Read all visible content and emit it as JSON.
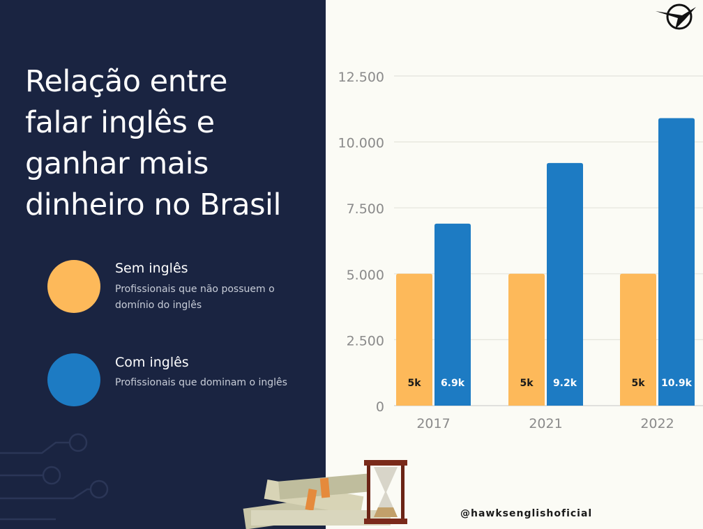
{
  "title": "Relação entre\nfalar inglês e\nganhar mais\ndinheiro no Brasil",
  "legend": [
    {
      "name": "Sem inglês",
      "desc": "Profissionais que não possuem o\ndomínio do inglês",
      "color": "#fdb95a"
    },
    {
      "name": "Com inglês",
      "desc": "Profissionais que dominam o inglês",
      "color": "#1d7bc3"
    }
  ],
  "handle": "@hawksenglishoficial",
  "chart_data": {
    "type": "bar",
    "categories": [
      "2017",
      "2021",
      "2022"
    ],
    "series": [
      {
        "values": [
          5000,
          5000,
          5000
        ],
        "labels": [
          "5k",
          "5k",
          "5k"
        ],
        "color": "#fdb95a",
        "label_color": "#1a1a1a"
      },
      {
        "values": [
          6900,
          9200,
          10900
        ],
        "labels": [
          "6.9k",
          "9.2k",
          "10.9k"
        ],
        "color": "#1d7bc3",
        "label_color": "#ffffff"
      }
    ],
    "yticks": [
      "0",
      "2.500",
      "5.000",
      "7.500",
      "10.000",
      "12.500"
    ],
    "ytick_values": [
      0,
      2500,
      5000,
      7500,
      10000,
      12500
    ],
    "ylim": [
      0,
      12500
    ],
    "grid": true
  }
}
